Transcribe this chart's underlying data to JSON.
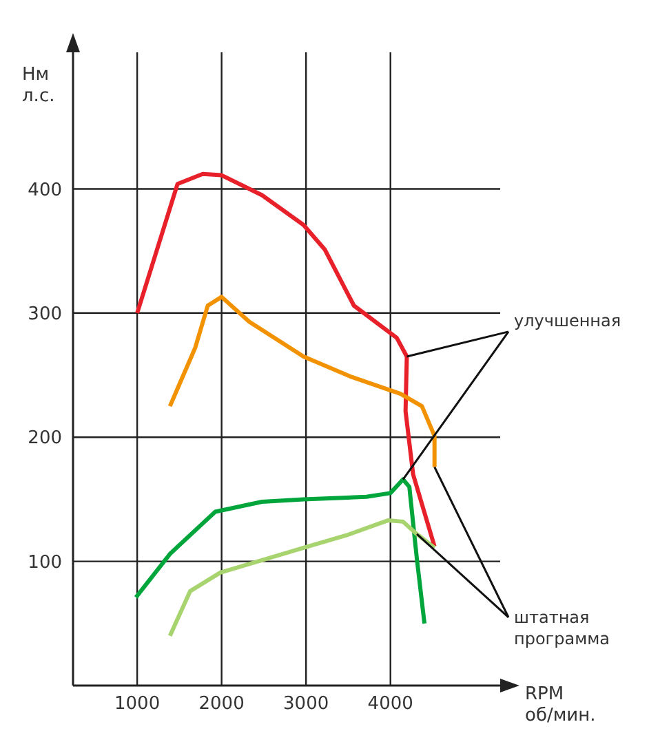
{
  "chart_data": {
    "type": "line",
    "xlabel": "RPM\nоб/мин.",
    "ylabel": "Нм\nл.с.",
    "xlim": [
      240,
      5300
    ],
    "ylim": [
      0,
      510
    ],
    "xticks": [
      1000,
      2000,
      3000,
      4000
    ],
    "yticks": [
      100,
      200,
      300,
      400
    ],
    "grid": true,
    "legend": false,
    "marker": "none",
    "line_style": "solid",
    "annotations": [
      {
        "text": "улучшенная",
        "x": 4194,
        "y": 265
      },
      {
        "text": "штатная\nпрограмма",
        "x": 4522,
        "y": 176
      }
    ],
    "series": [
      {
        "color": "#e8202a",
        "x": [
          1000,
          1478,
          1776,
          2000,
          2478,
          2970,
          3224,
          3567,
          4075,
          4194,
          4179,
          4269,
          4522
        ],
        "values": [
          300,
          404,
          412,
          411,
          395,
          371,
          351,
          306,
          280,
          265,
          221,
          170,
          112
        ]
      },
      {
        "color": "#f39200",
        "x": [
          1388,
          1687,
          1836,
          2000,
          2328,
          2970,
          3522,
          4119,
          4373,
          4522,
          4522
        ],
        "values": [
          225,
          272,
          306,
          313,
          293,
          265,
          249,
          235,
          225,
          201,
          176
        ]
      },
      {
        "color": "#00a63c",
        "x": [
          985,
          1388,
          1925,
          2478,
          2970,
          3716,
          4000,
          4149,
          4224,
          4313,
          4403
        ],
        "values": [
          71,
          106,
          140,
          148,
          150,
          152,
          155,
          166,
          160,
          102,
          50
        ]
      },
      {
        "color": "#a8d46f",
        "x": [
          1388,
          1627,
          1985,
          2478,
          2970,
          3478,
          3970,
          4149,
          4313,
          4522
        ],
        "values": [
          40,
          76,
          91,
          101,
          111,
          121,
          133,
          132,
          122,
          111
        ]
      }
    ]
  }
}
